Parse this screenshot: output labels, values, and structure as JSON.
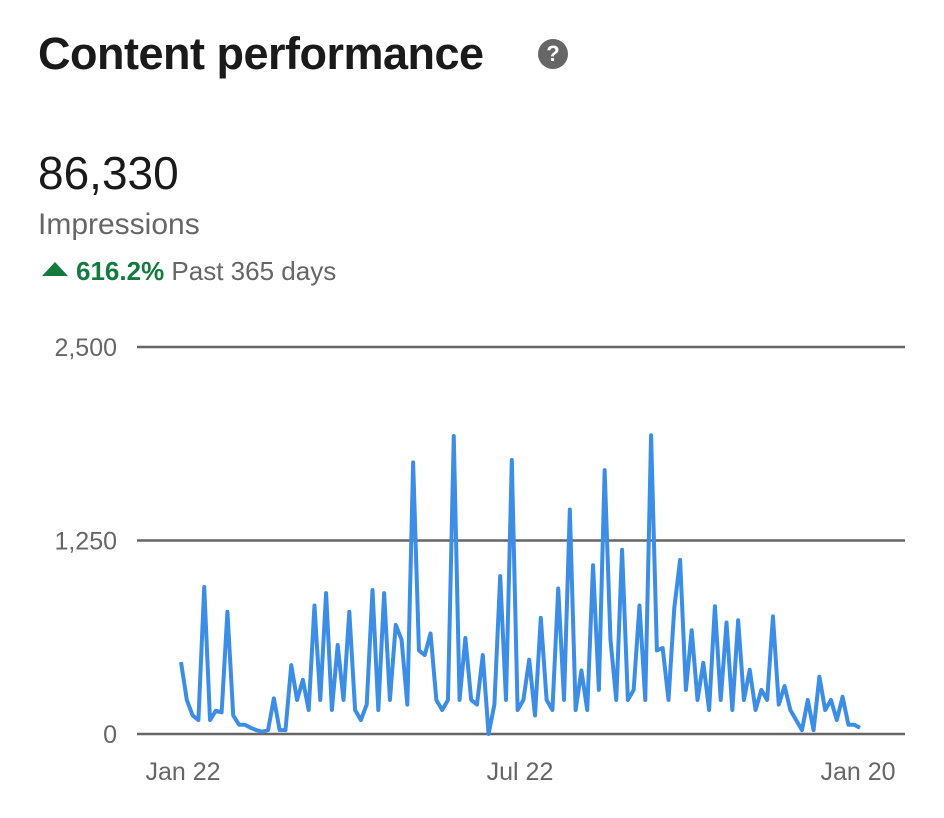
{
  "header": {
    "title": "Content performance",
    "help_icon": "question-circle-icon"
  },
  "summary": {
    "value": "86,330",
    "metric": "Impressions",
    "change": "616.2%",
    "period": "Past 365 days",
    "trend_icon": "triangle-up-icon",
    "trend_color": "#157a3f"
  },
  "chart_data": {
    "type": "line",
    "title": "",
    "xlabel": "",
    "ylabel": "",
    "ylim": [
      0,
      2500
    ],
    "yticks": [
      "2,500",
      "1,250",
      "0"
    ],
    "ytick_values": [
      2500,
      1250,
      0
    ],
    "xticks": [
      "Jan 22",
      "Jul 22",
      "Jan 20"
    ],
    "grid": true,
    "line_color": "#3b8de6",
    "values": [
      465,
      220,
      120,
      90,
      950,
      90,
      150,
      140,
      790,
      120,
      60,
      60,
      40,
      25,
      15,
      25,
      230,
      25,
      25,
      445,
      220,
      350,
      155,
      830,
      220,
      910,
      155,
      575,
      220,
      790,
      155,
      90,
      190,
      930,
      155,
      910,
      220,
      705,
      610,
      190,
      1755,
      540,
      510,
      650,
      220,
      155,
      220,
      1925,
      220,
      620,
      220,
      190,
      510,
      0,
      190,
      1020,
      220,
      1770,
      155,
      220,
      480,
      120,
      750,
      220,
      155,
      940,
      220,
      1450,
      155,
      410,
      155,
      1090,
      285,
      1705,
      610,
      220,
      1190,
      220,
      285,
      830,
      220,
      1930,
      540,
      555,
      220,
      815,
      1125,
      285,
      670,
      220,
      460,
      155,
      825,
      220,
      720,
      155,
      735,
      220,
      415,
      155,
      285,
      220,
      760,
      190,
      310,
      155,
      90,
      25,
      220,
      25,
      370,
      155,
      220,
      90,
      240,
      60,
      60,
      40
    ]
  }
}
